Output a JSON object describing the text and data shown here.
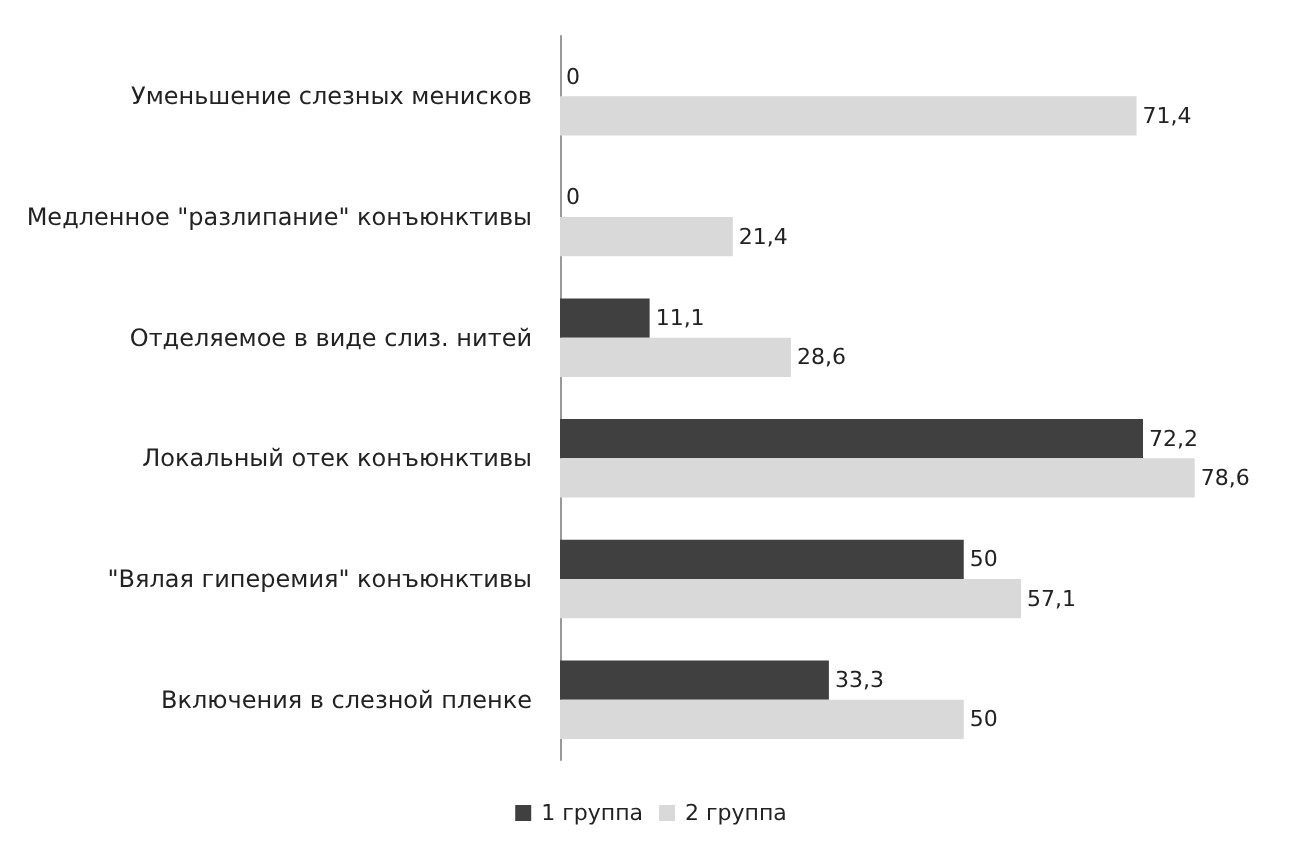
{
  "chart_data": {
    "type": "bar",
    "orientation": "horizontal",
    "categories": [
      "Уменьшение слезных менисков",
      "Медленное \"разлипание\" конъюнктивы",
      "Отделяемое в виде слиз. нитей",
      "Локальный отек конъюнктивы",
      "\"Вялая гиперемия\" конъюнктивы",
      "Включения в слезной пленке"
    ],
    "series": [
      {
        "name": "1 группа",
        "color": "#404040",
        "values": [
          0,
          0,
          11.1,
          72.2,
          50,
          33.3
        ],
        "value_labels": [
          "0",
          "0",
          "11,1",
          "72,2",
          "50",
          "33,3"
        ]
      },
      {
        "name": "2 группа",
        "color": "#d9d9d9",
        "values": [
          71.4,
          21.4,
          28.6,
          78.6,
          57.1,
          50
        ],
        "value_labels": [
          "71,4",
          "21,4",
          "28,6",
          "78,6",
          "57,1",
          "50"
        ]
      }
    ],
    "legend": "bottom",
    "grid": false,
    "tick_labels": "y"
  }
}
